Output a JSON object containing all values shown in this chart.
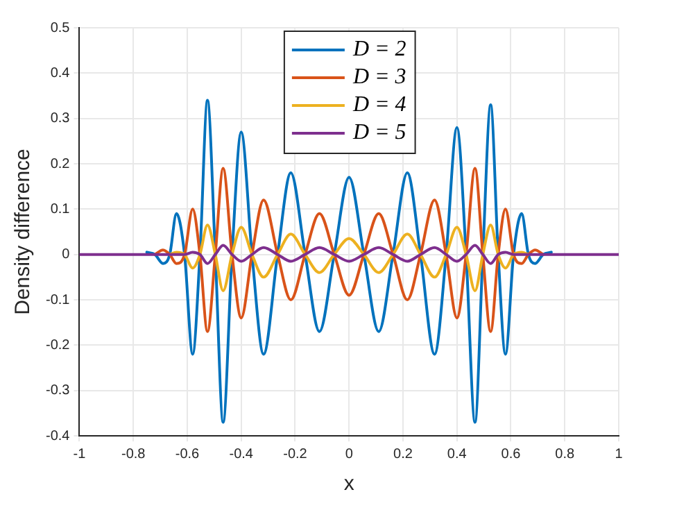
{
  "chart_data": {
    "type": "line",
    "xlabel": "x",
    "ylabel": "Density difference",
    "x": [
      -1,
      -0.8,
      -0.75,
      -0.72,
      -0.69,
      -0.665,
      -0.64,
      -0.61,
      -0.58,
      -0.553,
      -0.525,
      -0.496,
      -0.467,
      -0.434,
      -0.4,
      -0.36,
      -0.317,
      -0.265,
      -0.216,
      -0.163,
      -0.11,
      -0.055,
      0,
      0.055,
      0.11,
      0.163,
      0.216,
      0.265,
      0.317,
      0.36,
      0.4,
      0.434,
      0.467,
      0.496,
      0.525,
      0.553,
      0.58,
      0.61,
      0.64,
      0.665,
      0.69,
      0.72,
      0.75,
      0.8,
      1
    ],
    "series": [
      {
        "name": "D = 2",
        "color": "#0072bd",
        "values": [
          null,
          null,
          0.005,
          0,
          -0.02,
          0,
          0.09,
          0,
          -0.22,
          0,
          0.34,
          0,
          -0.37,
          0,
          0.27,
          0,
          -0.22,
          0,
          0.18,
          0,
          -0.17,
          0,
          0.17,
          0,
          -0.17,
          0,
          0.18,
          0,
          -0.22,
          0,
          0.28,
          0,
          -0.37,
          0,
          0.33,
          0,
          -0.22,
          0,
          0.09,
          0,
          -0.02,
          0,
          0.005,
          null,
          null
        ]
      },
      {
        "name": "D = 3",
        "color": "#d95319",
        "values": [
          null,
          null,
          null,
          0,
          0.01,
          0,
          -0.02,
          0,
          0.1,
          0,
          -0.17,
          0,
          0.19,
          0,
          -0.14,
          0,
          0.12,
          0,
          -0.1,
          0,
          0.09,
          0,
          -0.09,
          0,
          0.09,
          0,
          -0.1,
          0,
          0.12,
          0,
          -0.14,
          0,
          0.19,
          0,
          -0.17,
          0,
          0.1,
          0,
          -0.02,
          0,
          0.01,
          0,
          null,
          null,
          null
        ]
      },
      {
        "name": "D = 4",
        "color": "#edb120",
        "values": [
          null,
          null,
          null,
          null,
          null,
          0,
          0.005,
          0,
          -0.03,
          0,
          0.065,
          0,
          -0.08,
          0,
          0.06,
          0,
          -0.05,
          0,
          0.045,
          0,
          -0.04,
          0,
          0.035,
          0,
          -0.04,
          0,
          0.045,
          0,
          -0.05,
          0,
          0.06,
          0,
          -0.08,
          0,
          0.065,
          0,
          -0.03,
          0,
          0.005,
          0,
          null,
          null,
          null,
          null,
          null
        ]
      },
      {
        "name": "D = 5",
        "color": "#7e2f8e",
        "values": [
          0,
          0,
          0,
          0,
          0,
          0,
          0,
          0,
          0.005,
          0,
          -0.02,
          0,
          0.02,
          0,
          -0.015,
          0,
          0.015,
          0,
          -0.015,
          0,
          0.015,
          0,
          -0.015,
          0,
          0.015,
          0,
          -0.015,
          0,
          0.015,
          0,
          -0.015,
          0,
          0.02,
          0,
          -0.02,
          0,
          0.005,
          0,
          0,
          0,
          0,
          0,
          0,
          0,
          0
        ]
      }
    ],
    "xlim": [
      -1,
      1
    ],
    "xticks": [
      -1,
      -0.8,
      -0.6,
      -0.4,
      -0.2,
      0,
      0.2,
      0.4,
      0.6,
      0.8,
      1
    ],
    "ylim": [
      -0.4,
      0.5
    ],
    "yticks": [
      -0.4,
      -0.3,
      -0.2,
      -0.1,
      0,
      0.1,
      0.2,
      0.3,
      0.4,
      0.5
    ],
    "grid": true,
    "legend": "top",
    "marker": "none",
    "line_style": "solid"
  }
}
